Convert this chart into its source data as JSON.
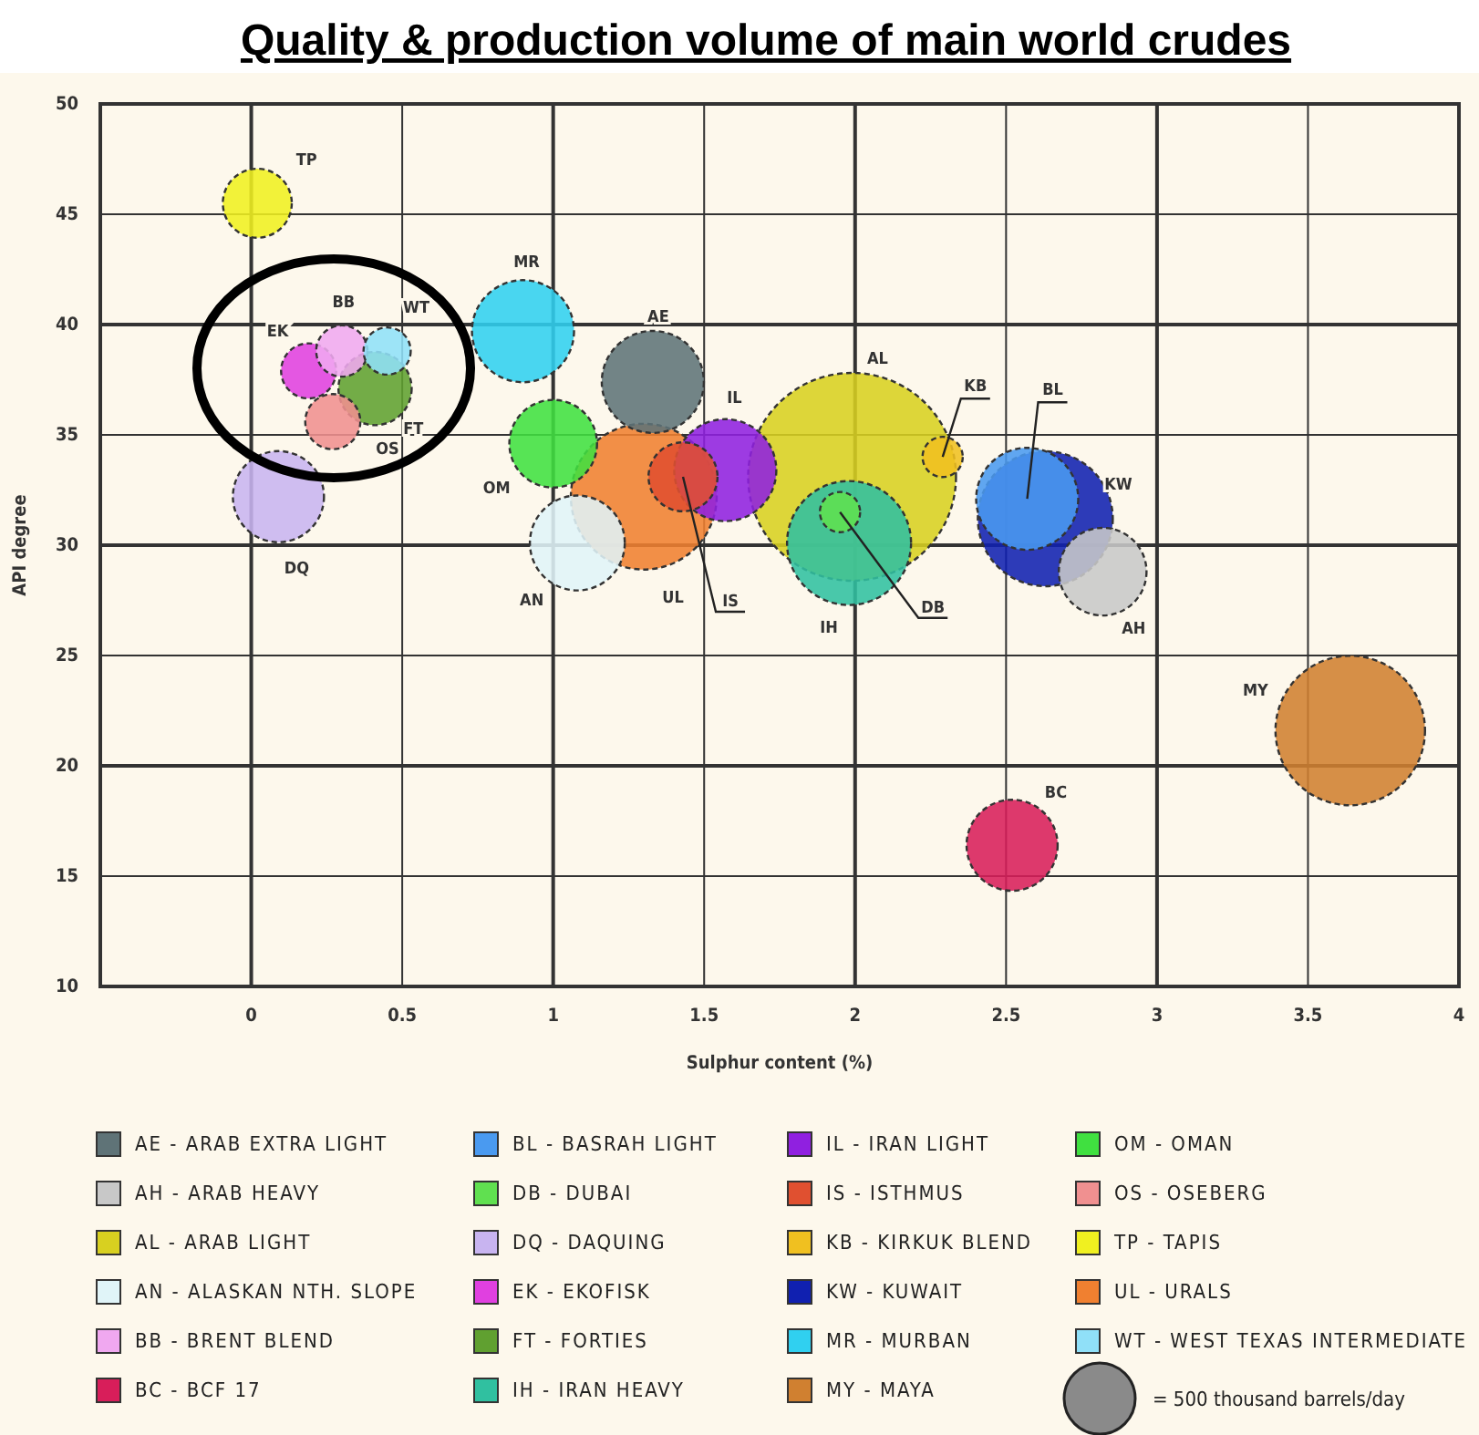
{
  "chart_data": {
    "type": "bubble",
    "title": "Quality & production volume of main world crudes",
    "xlabel": "Sulphur content (%)",
    "ylabel": "API degree",
    "xlim": [
      -0.5,
      4
    ],
    "xticks": [
      0,
      0.5,
      1,
      1.5,
      2,
      2.5,
      3,
      3.5,
      4
    ],
    "ylim": [
      10,
      50
    ],
    "yticks": [
      10,
      15,
      20,
      25,
      30,
      35,
      40,
      45,
      50
    ],
    "grid": true,
    "legend": "bottom",
    "size_legend": [
      {
        "value": 500,
        "label": "= 500 thousand barrels/day"
      }
    ],
    "series": [
      {
        "name": "AE - ARAB EXTRA LIGHT",
        "color": "#5f7377",
        "x": [
          1.33
        ],
        "values": [
          37.4
        ],
        "sizes": [
          1030
        ]
      },
      {
        "name": "AH - ARAB HEAVY",
        "color": "#c8c8c8",
        "x": [
          2.82
        ],
        "values": [
          28.8
        ],
        "sizes": [
          760
        ]
      },
      {
        "name": "AL - ARAB LIGHT",
        "color": "#d8d020",
        "x": [
          1.99
        ],
        "values": [
          33.1
        ],
        "sizes": [
          4270
        ]
      },
      {
        "name": "AN - ALASKAN NTH. SLOPE",
        "color": "#e0f4f8",
        "x": [
          1.08
        ],
        "values": [
          30.1
        ],
        "sizes": [
          890
        ]
      },
      {
        "name": "BB - BRENT BLEND",
        "color": "#f0a8f0",
        "x": [
          0.3
        ],
        "values": [
          38.8
        ],
        "sizes": [
          260
        ]
      },
      {
        "name": "BC - BCF 17",
        "color": "#d81e5a",
        "x": [
          2.52
        ],
        "values": [
          16.4
        ],
        "sizes": [
          820
        ]
      },
      {
        "name": "BL - BASRAH LIGHT",
        "color": "#4a9af0",
        "x": [
          2.57
        ],
        "values": [
          32.1
        ],
        "sizes": [
          1030
        ]
      },
      {
        "name": "DB - DUBAI",
        "color": "#60e050",
        "x": [
          1.95
        ],
        "values": [
          31.5
        ],
        "sizes": [
          160
        ]
      },
      {
        "name": "DQ - DAQUING",
        "color": "#c8b4f0",
        "x": [
          0.09
        ],
        "values": [
          32.2
        ],
        "sizes": [
          820
        ]
      },
      {
        "name": "EK - EKOFISK",
        "color": "#e040e0",
        "x": [
          0.19
        ],
        "values": [
          37.9
        ],
        "sizes": [
          300
        ]
      },
      {
        "name": "FT - FORTIES",
        "color": "#60a030",
        "x": [
          0.41
        ],
        "values": [
          37.1
        ],
        "sizes": [
          530
        ]
      },
      {
        "name": "IH - IRAN HEAVY",
        "color": "#30c0a0",
        "x": [
          1.98
        ],
        "values": [
          30.1
        ],
        "sizes": [
          1520
        ]
      },
      {
        "name": "IL - IRAN LIGHT",
        "color": "#9020e0",
        "x": [
          1.57
        ],
        "values": [
          33.4
        ],
        "sizes": [
          1030
        ]
      },
      {
        "name": "IS - ISTHMUS",
        "color": "#e05030",
        "x": [
          1.43
        ],
        "values": [
          33.1
        ],
        "sizes": [
          470
        ]
      },
      {
        "name": "KB - KIRKUK BLEND",
        "color": "#f0c020",
        "x": [
          2.29
        ],
        "values": [
          34.0
        ],
        "sizes": [
          160
        ]
      },
      {
        "name": "KW - KUWAIT",
        "color": "#1020b0",
        "x": [
          2.63
        ],
        "values": [
          31.2
        ],
        "sizes": [
          1800
        ]
      },
      {
        "name": "MR - MURBAN",
        "color": "#30d0f0",
        "x": [
          0.9
        ],
        "values": [
          39.7
        ],
        "sizes": [
          1030
        ]
      },
      {
        "name": "MY - MAYA",
        "color": "#d08030",
        "x": [
          3.64
        ],
        "values": [
          21.6
        ],
        "sizes": [
          2210
        ]
      },
      {
        "name": "OM - OMAN",
        "color": "#40e040",
        "x": [
          1.0
        ],
        "values": [
          34.6
        ],
        "sizes": [
          760
        ]
      },
      {
        "name": "OS - OSEBERG",
        "color": "#f09090",
        "x": [
          0.27
        ],
        "values": [
          35.6
        ],
        "sizes": [
          300
        ]
      },
      {
        "name": "TP - TAPIS",
        "color": "#f0f020",
        "x": [
          0.02
        ],
        "values": [
          45.5
        ],
        "sizes": [
          470
        ]
      },
      {
        "name": "UL - URALS",
        "color": "#f08030",
        "x": [
          1.3
        ],
        "values": [
          32.2
        ],
        "sizes": [
          2100
        ]
      },
      {
        "name": "WT - WEST TEXAS INTERMEDIATE",
        "color": "#90e0f8",
        "x": [
          0.45
        ],
        "values": [
          38.8
        ],
        "sizes": [
          220
        ]
      }
    ],
    "annotations": [
      "AE",
      "AH",
      "AL",
      "AN",
      "BB",
      "BC",
      {
        "text": "BL",
        "x": 2.57,
        "y": 32.1
      },
      {
        "text": "DB",
        "x": 1.95,
        "y": 31.5
      },
      "DQ",
      "EK",
      "FT",
      "IH",
      "IL",
      {
        "text": "IS",
        "x": 1.43,
        "y": 33.1
      },
      {
        "text": "KB",
        "x": 2.29,
        "y": 34.0
      },
      "KW",
      "MR",
      "MY",
      "OM",
      "OS",
      "TP",
      "UL",
      "WT"
    ]
  }
}
